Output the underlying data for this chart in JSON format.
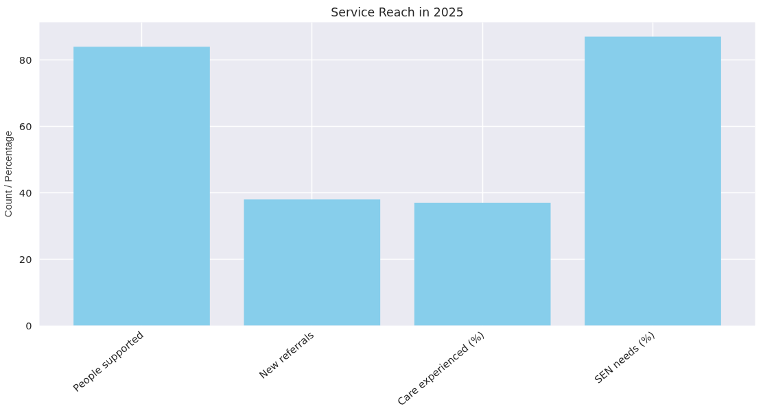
{
  "chart_data": {
    "type": "bar",
    "title": "Service Reach in 2025",
    "ylabel": "Count / Percentage",
    "categories": [
      "People supported",
      "New referrals",
      "Care experienced (%)",
      "SEN needs (%)"
    ],
    "values": [
      84,
      38,
      37,
      87
    ],
    "color": "#87ceeb",
    "ylim": [
      0,
      91.35
    ],
    "yticks": [
      0,
      20,
      40,
      60,
      80
    ],
    "grid": true
  }
}
